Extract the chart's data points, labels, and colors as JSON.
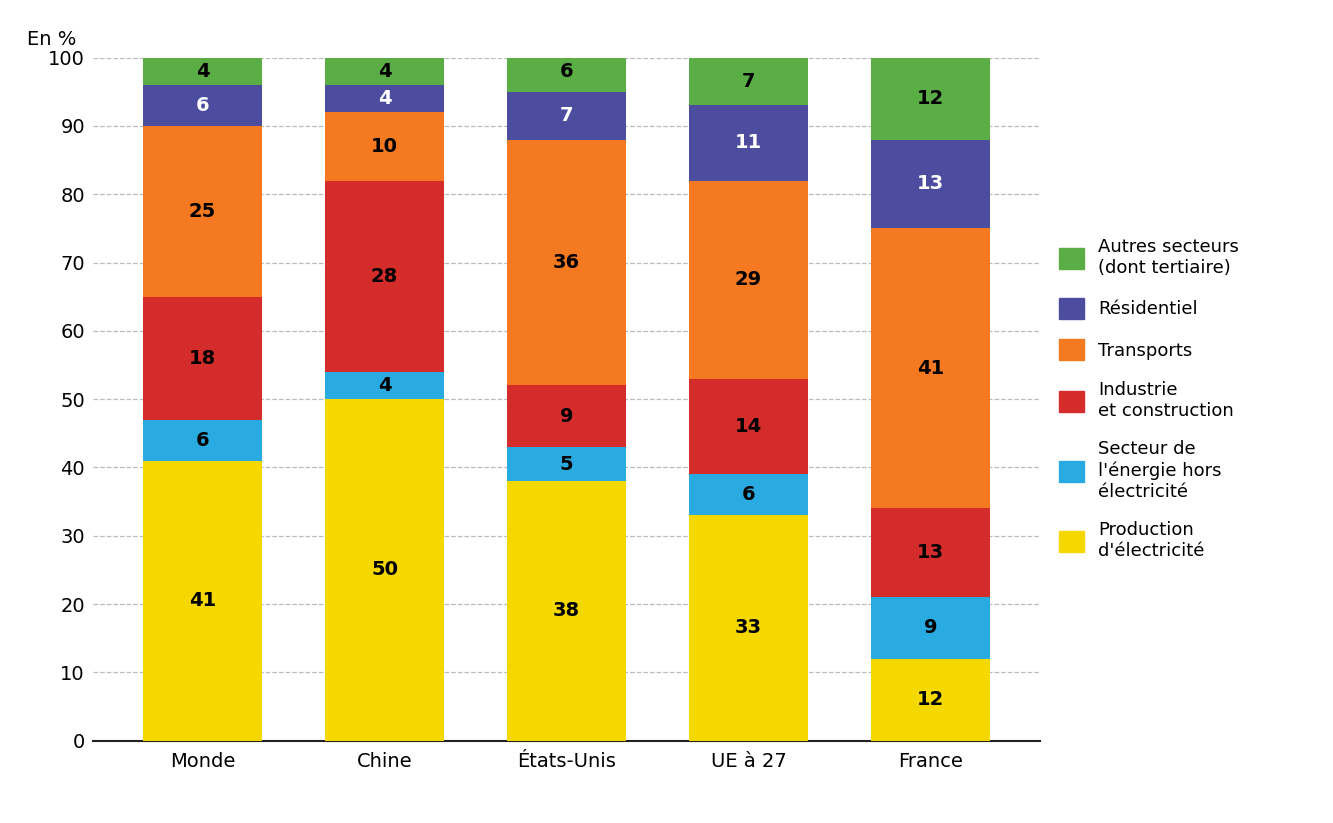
{
  "categories": [
    "Monde",
    "Chine",
    "États-Unis",
    "UE à 27",
    "France"
  ],
  "series": [
    {
      "label": "Production\nd'électricité",
      "color": "#F5D800",
      "values": [
        41,
        50,
        38,
        33,
        12
      ],
      "text_color": [
        "#000000",
        "#000000",
        "#000000",
        "#000000",
        "#000000"
      ]
    },
    {
      "label": "Secteur de\nl'énergie hors\nélectricité",
      "color": "#29ABE2",
      "values": [
        6,
        4,
        5,
        6,
        9
      ],
      "text_color": [
        "#000000",
        "#000000",
        "#000000",
        "#000000",
        "#000000"
      ]
    },
    {
      "label": "Industrie\net construction",
      "color": "#D42B2B",
      "values": [
        18,
        28,
        9,
        14,
        13
      ],
      "text_color": [
        "#000000",
        "#000000",
        "#000000",
        "#000000",
        "#000000"
      ]
    },
    {
      "label": "Transports",
      "color": "#F47920",
      "values": [
        25,
        10,
        36,
        29,
        41
      ],
      "text_color": [
        "#000000",
        "#000000",
        "#000000",
        "#000000",
        "#000000"
      ]
    },
    {
      "label": "Résidentiel",
      "color": "#4D4D9F",
      "values": [
        6,
        4,
        7,
        11,
        13
      ],
      "text_color": [
        "#ffffff",
        "#ffffff",
        "#ffffff",
        "#ffffff",
        "#ffffff"
      ]
    },
    {
      "label": "Autres secteurs\n(dont tertiaire)",
      "color": "#5BAD45",
      "values": [
        4,
        4,
        6,
        7,
        12
      ],
      "text_color": [
        "#000000",
        "#000000",
        "#000000",
        "#000000",
        "#000000"
      ]
    }
  ],
  "ylabel": "En %",
  "ylim": [
    0,
    100
  ],
  "yticks": [
    0,
    10,
    20,
    30,
    40,
    50,
    60,
    70,
    80,
    90,
    100
  ],
  "bar_width": 0.65,
  "background_color": "#ffffff",
  "text_color": "#000000",
  "label_fontsize": 14,
  "tick_fontsize": 14,
  "legend_fontsize": 13,
  "ylabel_fontsize": 14
}
